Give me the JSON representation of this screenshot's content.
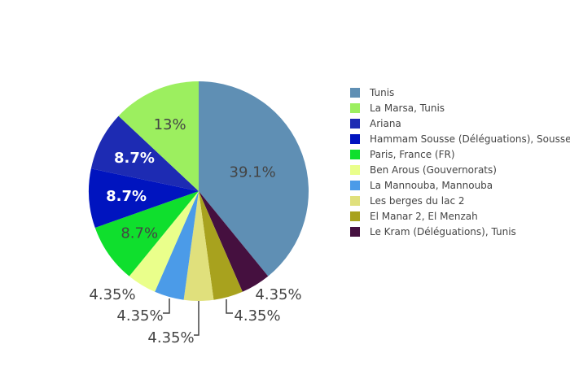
{
  "chart_data": {
    "type": "pie",
    "sort": false,
    "legend_position": "right",
    "slices": [
      {
        "label": "Tunis",
        "value": 39.1,
        "text": "39.1%",
        "color": "#5f8fb4"
      },
      {
        "label": "Kram (Déléguations), Tunis",
        "value": 4.35,
        "text": "4.35%",
        "color": "#45103f"
      },
      {
        "label": "El Manar 2, El Menzah",
        "value": 4.35,
        "text": "4.35%",
        "color": "#a8a21e"
      },
      {
        "label": "Les berges du lac 2",
        "value": 4.35,
        "text": "4.35%",
        "color": "#e0e07c"
      },
      {
        "label": "La Mannouba, Mannouba",
        "value": 4.35,
        "text": "4.35%",
        "color": "#4b9be8"
      },
      {
        "label": "Ben Arous (Gouvernorats)",
        "value": 4.35,
        "text": "4.35%",
        "color": "#eaff8b"
      },
      {
        "label": "Paris, France (FR)",
        "value": 8.7,
        "text": "8.7%",
        "color": "#0fdf2d"
      },
      {
        "label": "Hammam Sousse (Déléguations), Sousse",
        "value": 8.7,
        "text": "8.7%",
        "color": "#0014bf"
      },
      {
        "label": "Ariana",
        "value": 8.7,
        "text": "8.7%",
        "color": "#1d2bb3"
      },
      {
        "label": "La Marsa, Tunis",
        "value": 13,
        "text": "13%",
        "color": "#9cef5f"
      }
    ],
    "legend": [
      {
        "label": "Tunis",
        "color": "#5f8fb4"
      },
      {
        "label": "La Marsa, Tunis",
        "color": "#9cef5f"
      },
      {
        "label": "Ariana",
        "color": "#1d2bb3"
      },
      {
        "label": "Hammam Sousse (Déléguations), Sousse",
        "color": "#0014bf"
      },
      {
        "label": "Paris, France (FR)",
        "color": "#0fdf2d"
      },
      {
        "label": "Ben Arous (Gouvernorats)",
        "color": "#eaff8b"
      },
      {
        "label": "La Mannouba, Mannouba",
        "color": "#4b9be8"
      },
      {
        "label": "Les berges du lac 2",
        "color": "#e0e07c"
      },
      {
        "label": "El Manar 2, El Menzah",
        "color": "#a8a21e"
      },
      {
        "label": "Le Kram (Déléguations), Tunis",
        "color": "#45103f"
      }
    ]
  }
}
